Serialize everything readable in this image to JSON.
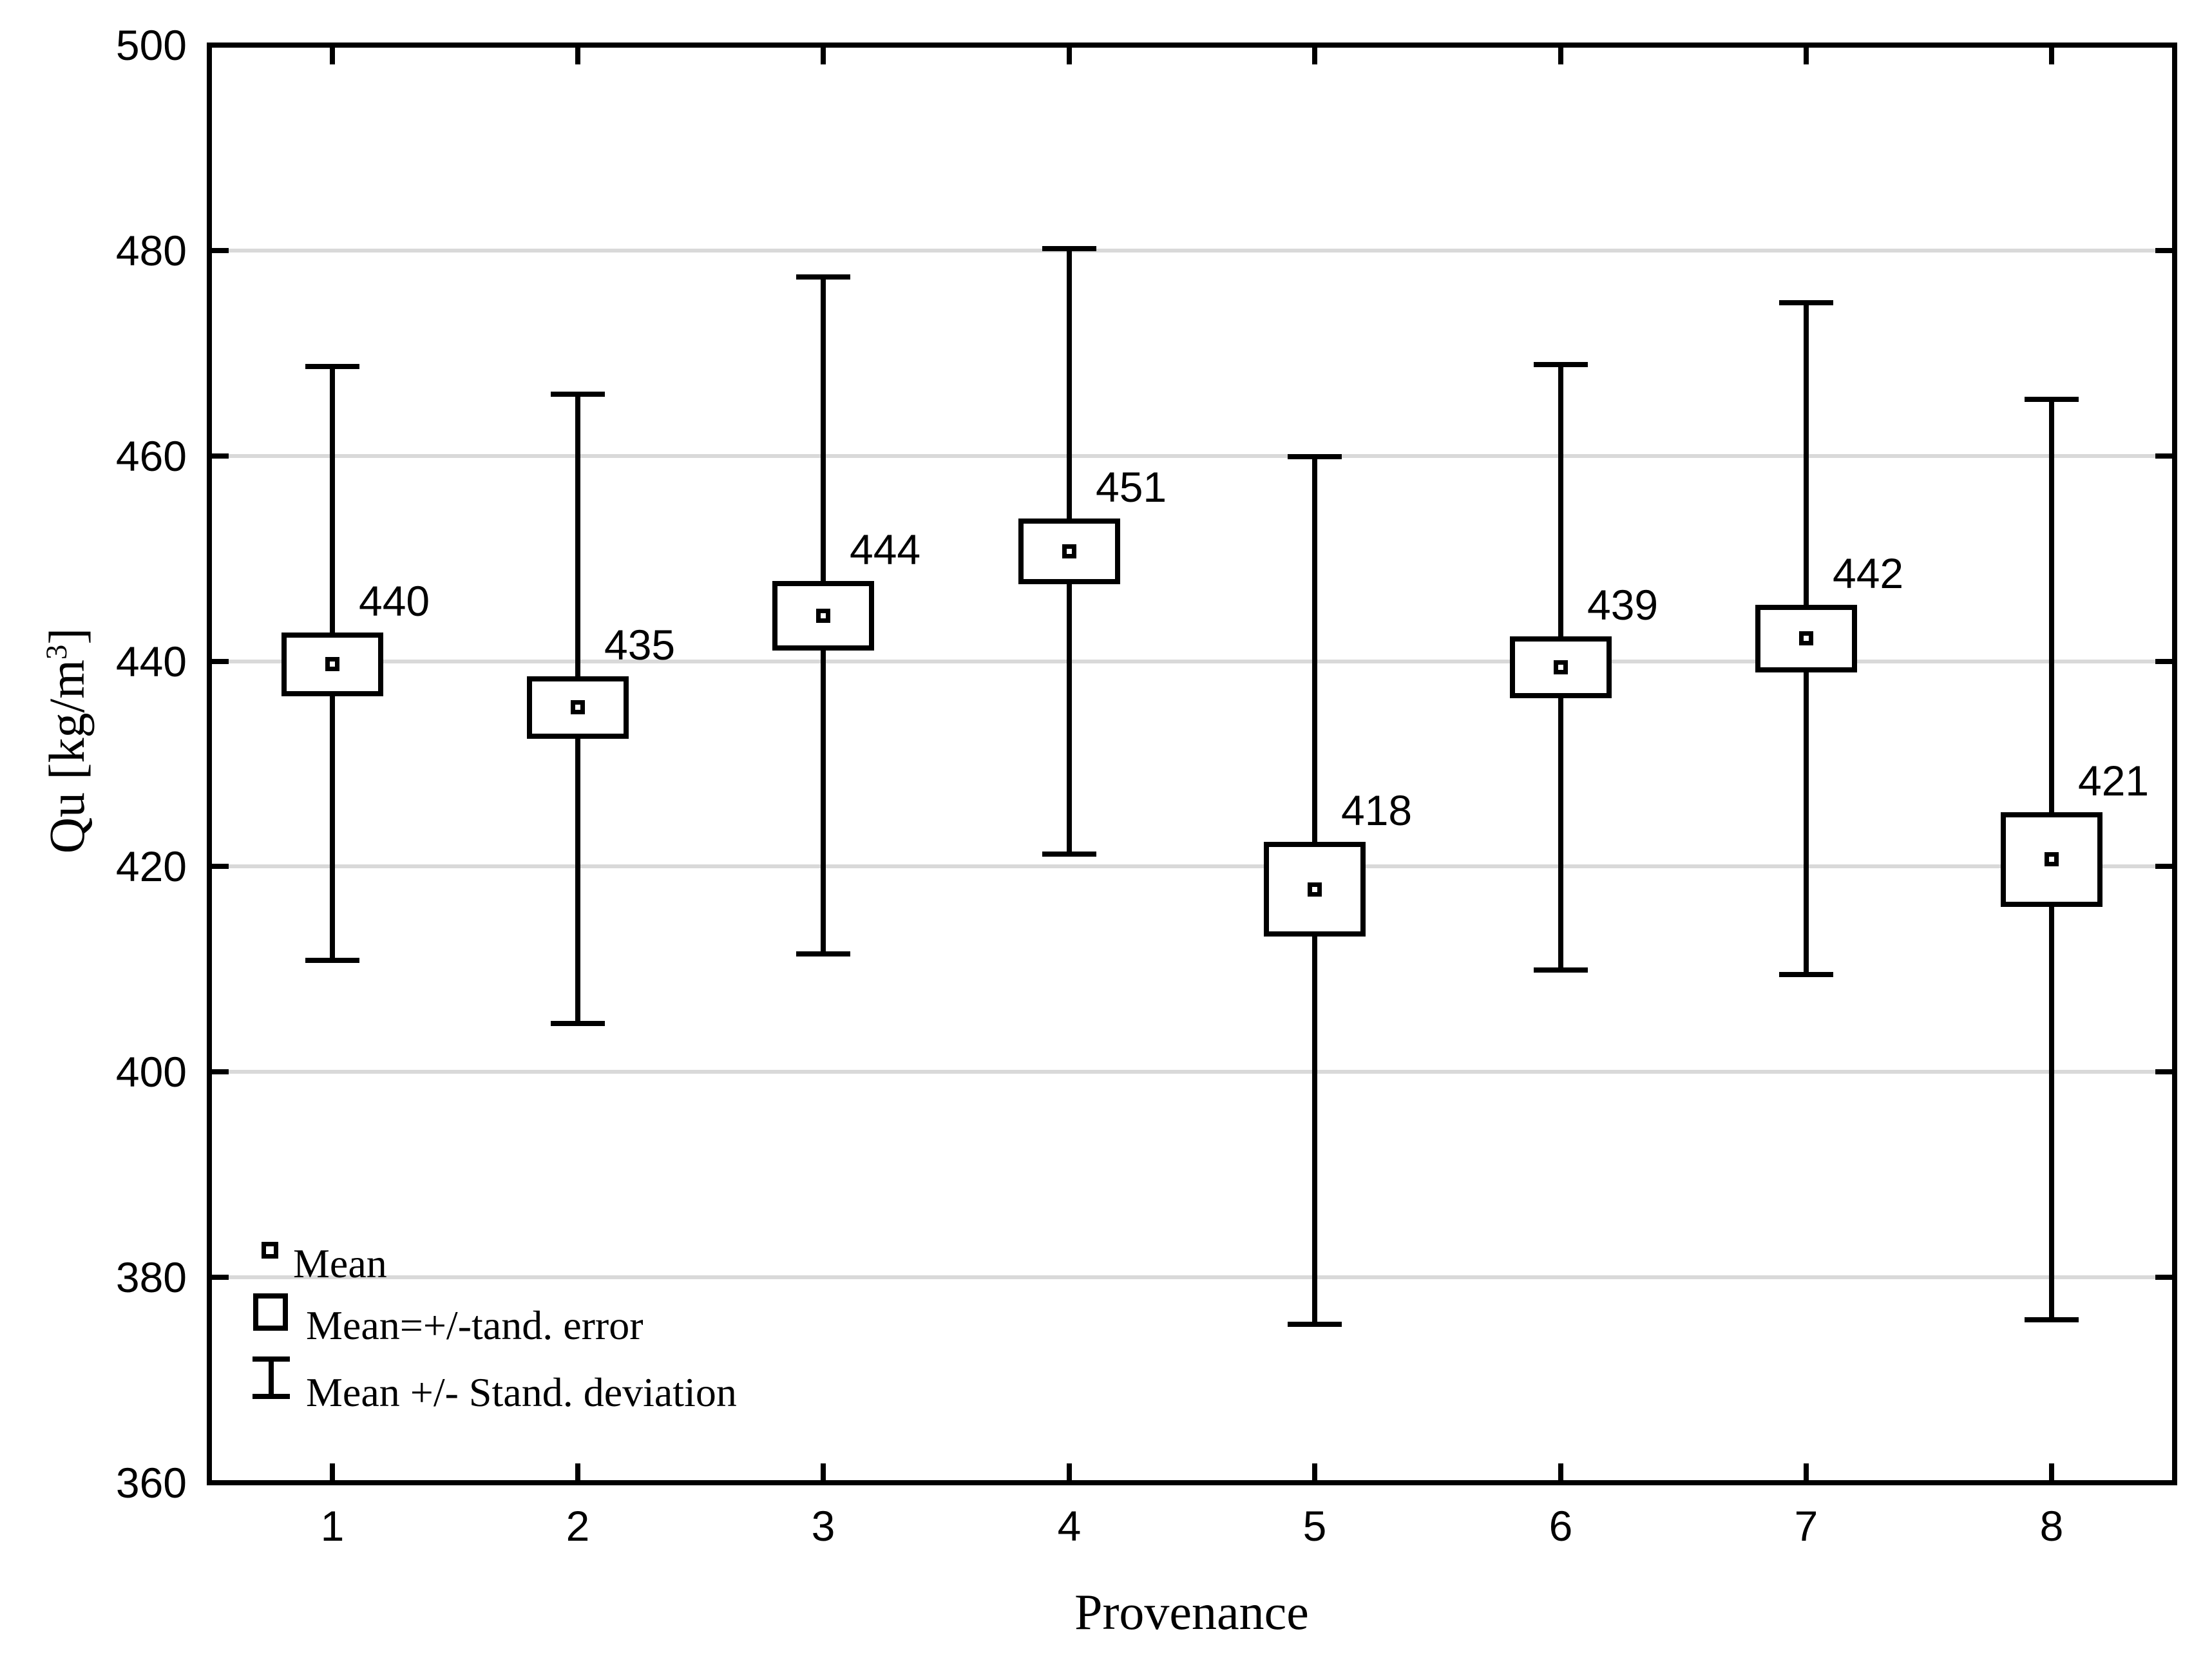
{
  "chart_data": {
    "type": "box-whisker-means",
    "xlabel": "Provenance",
    "ylabel_main1": "Qu [kg/m",
    "ylabel_sup": "3",
    "ylabel_main2": "]",
    "x_categories": [
      "1",
      "2",
      "3",
      "4",
      "5",
      "6",
      "7",
      "8"
    ],
    "y_axis": {
      "min": 360,
      "max": 500,
      "tick_step": 20,
      "ticks": [
        360,
        380,
        400,
        420,
        440,
        460,
        480,
        500
      ],
      "gridline_ticks": [
        380,
        400,
        420,
        440,
        460,
        480
      ]
    },
    "series": [
      {
        "category": "1",
        "mean": 439.7,
        "label": "440",
        "se_low": 436.6,
        "se_high": 442.8,
        "sd_low": 410.9,
        "sd_high": 468.7
      },
      {
        "category": "2",
        "mean": 435.5,
        "label": "435",
        "se_low": 432.4,
        "se_high": 438.5,
        "sd_low": 404.7,
        "sd_high": 466.0
      },
      {
        "category": "3",
        "mean": 444.4,
        "label": "444",
        "se_low": 441.0,
        "se_high": 447.8,
        "sd_low": 411.5,
        "sd_high": 477.4
      },
      {
        "category": "4",
        "mean": 450.7,
        "label": "451",
        "se_low": 447.5,
        "se_high": 453.9,
        "sd_low": 421.2,
        "sd_high": 480.2
      },
      {
        "category": "5",
        "mean": 417.8,
        "label": "418",
        "se_low": 413.2,
        "se_high": 422.4,
        "sd_low": 375.4,
        "sd_high": 459.9
      },
      {
        "category": "6",
        "mean": 439.4,
        "label": "439",
        "se_low": 436.4,
        "se_high": 442.4,
        "sd_low": 409.9,
        "sd_high": 468.9
      },
      {
        "category": "7",
        "mean": 442.2,
        "label": "442",
        "se_low": 438.9,
        "se_high": 445.5,
        "sd_low": 409.5,
        "sd_high": 474.9
      },
      {
        "category": "8",
        "mean": 420.7,
        "label": "421",
        "se_low": 416.1,
        "se_high": 425.3,
        "sd_low": 375.9,
        "sd_high": 465.5
      }
    ],
    "legend": [
      {
        "symbol": "mean-square",
        "label": "Mean"
      },
      {
        "symbol": "se-box",
        "label": "Mean=+/-tand. error"
      },
      {
        "symbol": "sd-whisker",
        "label": "Mean +/- Stand. deviation"
      }
    ],
    "grid": "horizontal",
    "legend_position": "bottom-left-inside",
    "colors": {
      "line": "#000000",
      "grid": "#d9d9d9",
      "background": "#ffffff"
    }
  }
}
